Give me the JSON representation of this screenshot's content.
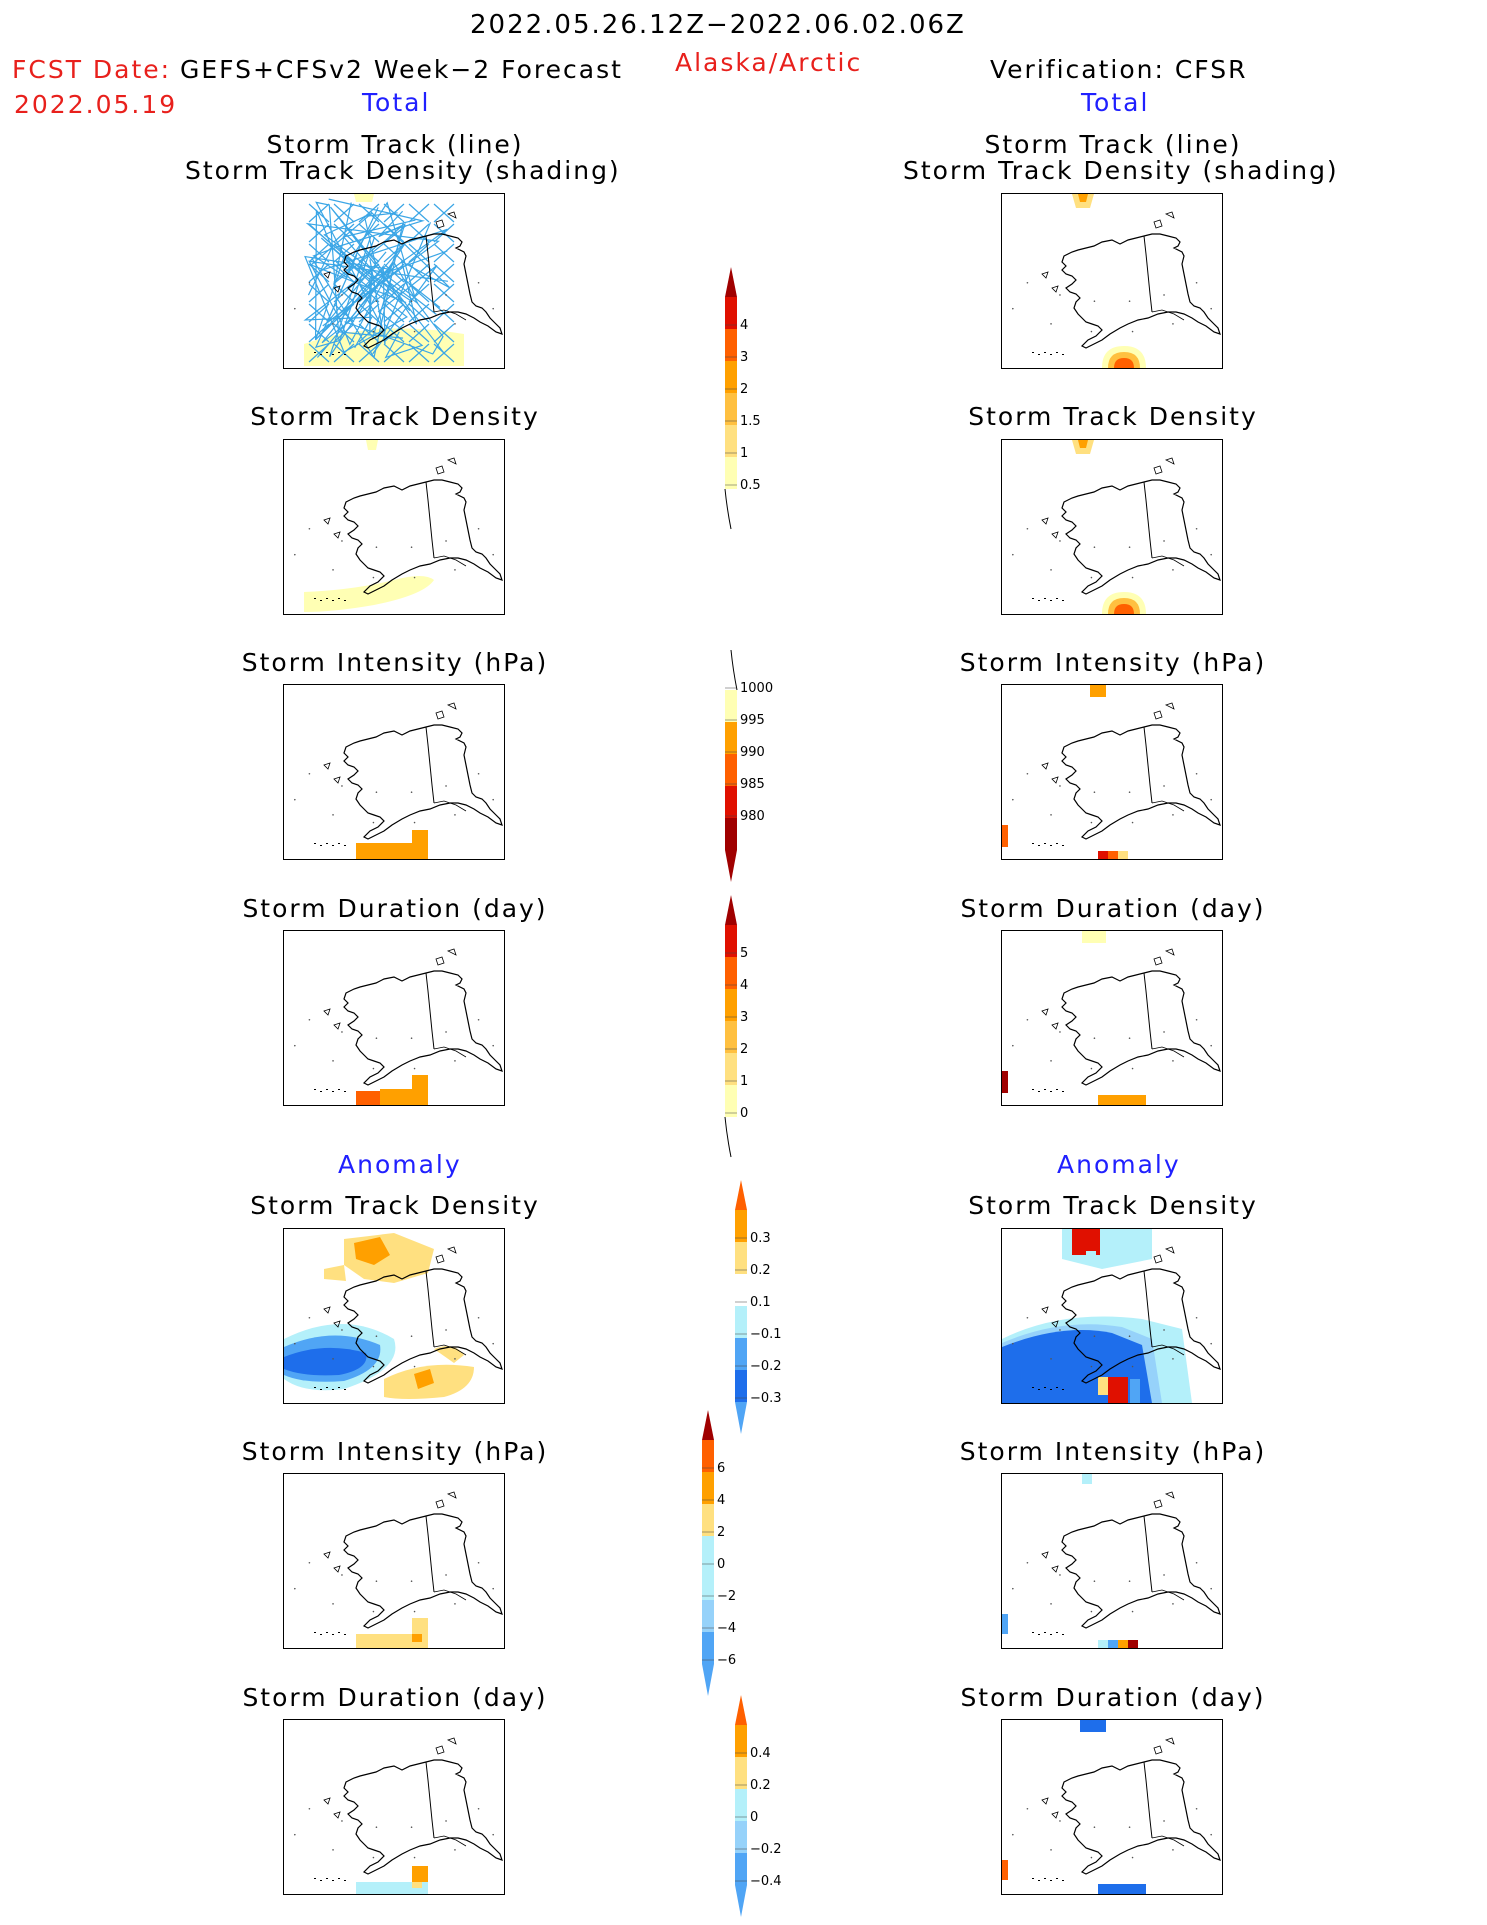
{
  "header": {
    "period": "2022.05.26.12Z−2022.06.02.06Z",
    "fcst_date_label": "FCST Date:",
    "fcst_source": "GEFS+CFSv2 Week−2 Forecast",
    "fcst_date": "2022.05.19",
    "region": "Alaska/Arctic",
    "verification": "Verification: CFSR"
  },
  "sections": {
    "total_left": "Total",
    "total_right": "Total",
    "anomaly_left": "Anomaly",
    "anomaly_right": "Anomaly"
  },
  "panel_titles": {
    "track_line": "Storm Track (line)",
    "track_density_shading": "Storm Track Density (shading)",
    "track_density": "Storm Track Density",
    "intensity": "Storm Intensity (hPa)",
    "duration": "Storm Duration (day)"
  },
  "colors": {
    "lightyellow": "#ffffb4",
    "yellow": "#ffe080",
    "lightorange": "#ffc040",
    "orange": "#ffa000",
    "darkorange": "#ff6000",
    "red": "#e01000",
    "darkred": "#a00000",
    "lightblue": "#b4f0fa",
    "skyblue": "#96d2fa",
    "medblue": "#50a5f5",
    "blue": "#1e6eeb",
    "track": "#3ba6e6"
  },
  "colorbars": {
    "density": {
      "labels": [
        "4",
        "3",
        "2",
        "1.5",
        "1",
        "0.5"
      ]
    },
    "intensity": {
      "labels": [
        "1000",
        "995",
        "990",
        "985",
        "980"
      ]
    },
    "duration": {
      "labels": [
        "5",
        "4",
        "3",
        "2",
        "1",
        "0"
      ]
    },
    "density_anom": {
      "labels": [
        "0.3",
        "0.2",
        "0.1",
        "−0.1",
        "−0.2",
        "−0.3"
      ]
    },
    "intensity_anom": {
      "labels": [
        "6",
        "4",
        "2",
        "0",
        "−2",
        "−4",
        "−6"
      ]
    },
    "duration_anom": {
      "labels": [
        "0.4",
        "0.2",
        "0",
        "−0.2",
        "−0.4"
      ]
    }
  }
}
